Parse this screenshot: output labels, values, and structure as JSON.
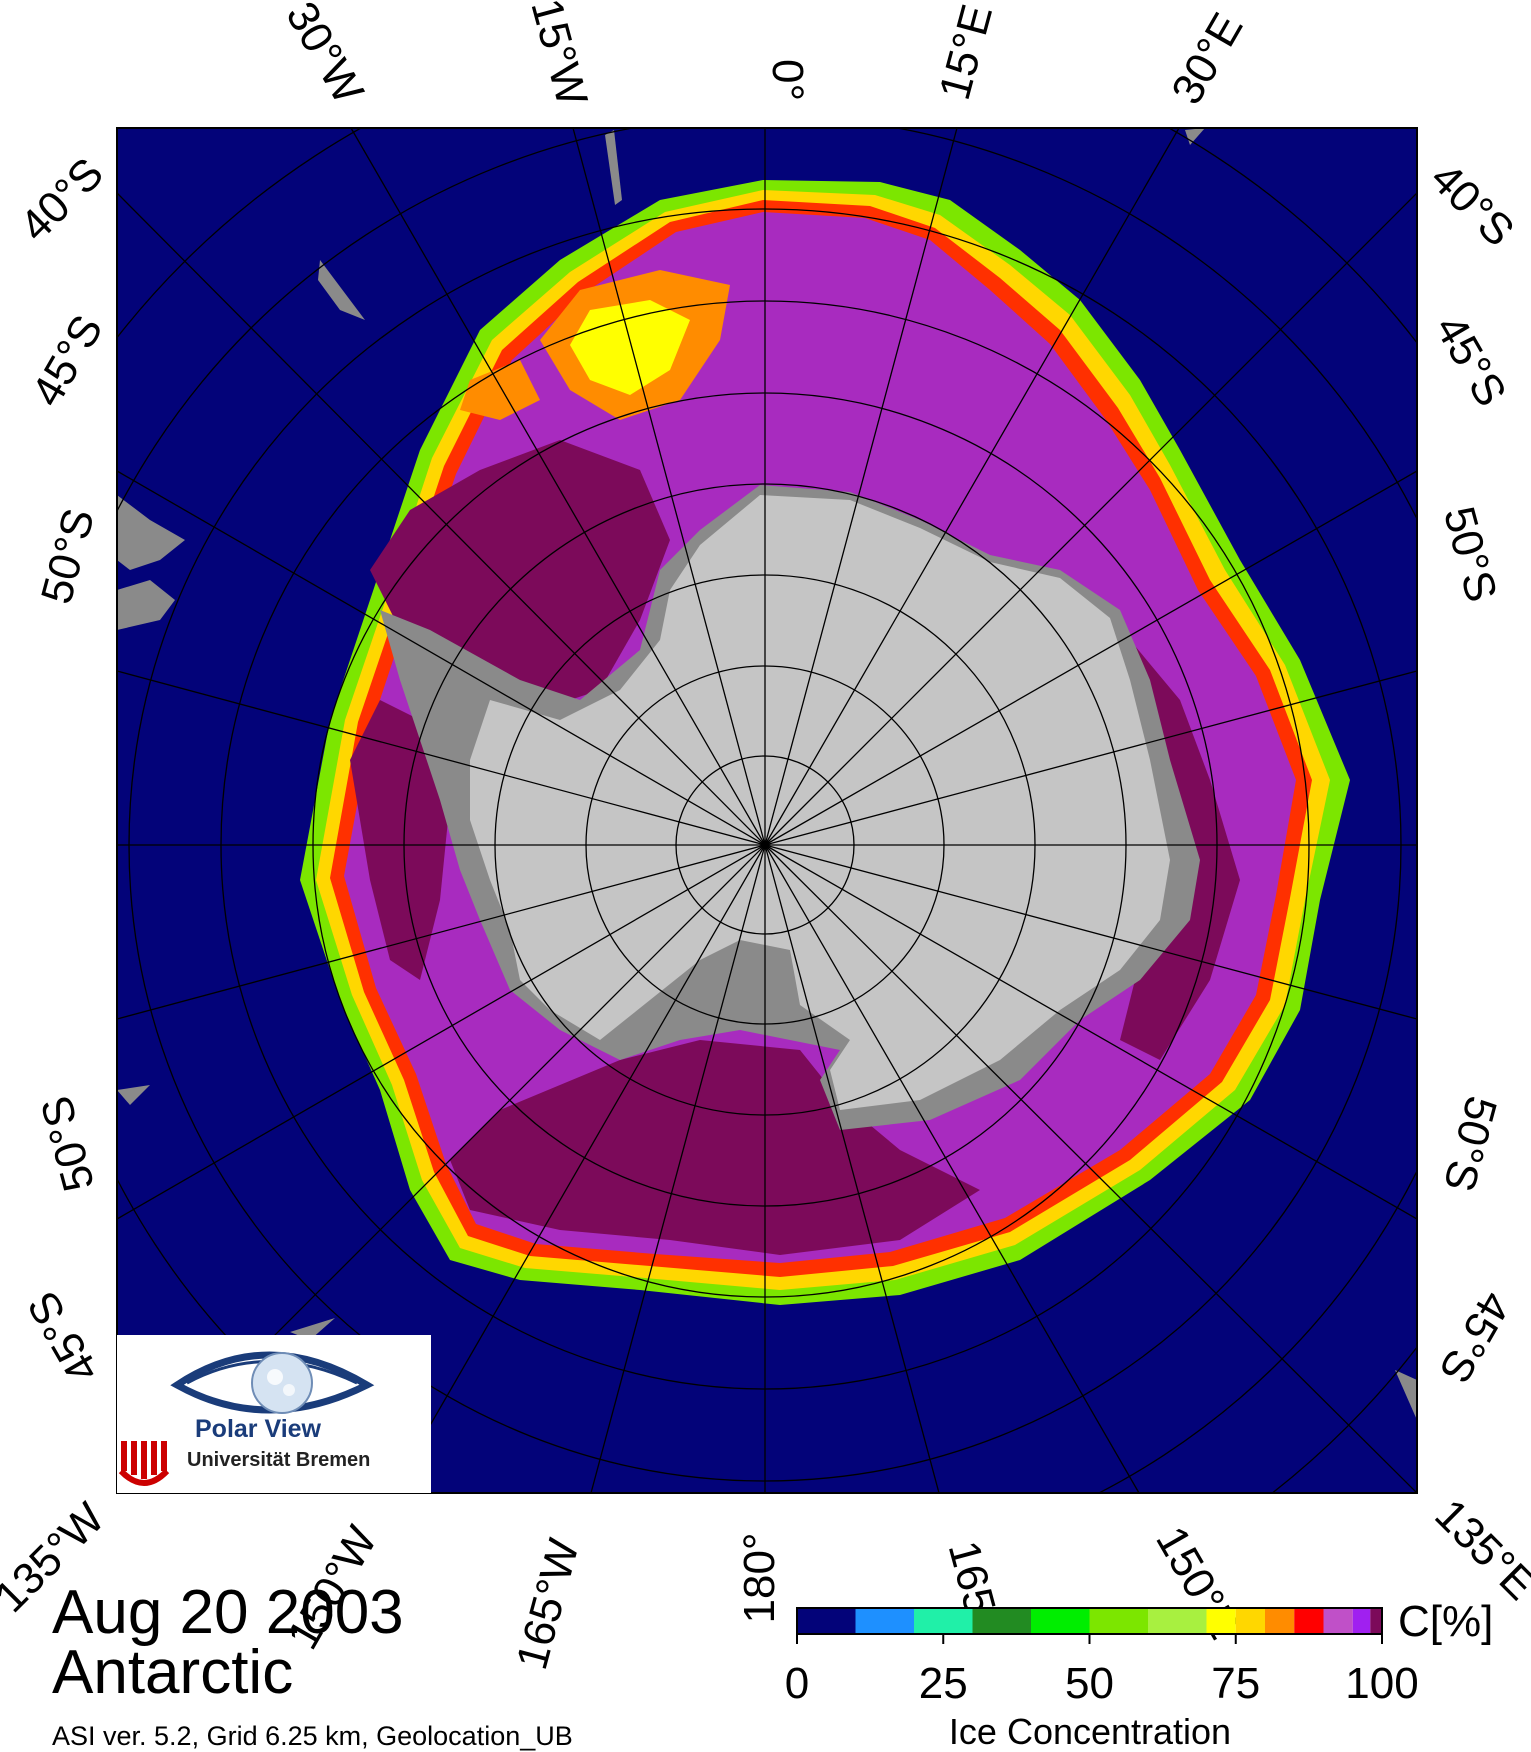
{
  "header": {
    "date": "Aug 20 2003",
    "region": "Antarctic"
  },
  "footer": {
    "info": "ASI ver. 5.2,  Grid 6.25 km, Geolocation_UB"
  },
  "map": {
    "projection": "polar stereographic, south pole",
    "top_longitude_labels": [
      "30°W",
      "15°W",
      "0°",
      "15°E",
      "30°E"
    ],
    "bottom_longitude_labels": [
      "135°W",
      "150°W",
      "165°W",
      "180°",
      "165°",
      "150°E",
      "135°E"
    ],
    "left_latitude_labels": [
      "40°S",
      "45°S",
      "50°S",
      "50°S",
      "45°S"
    ],
    "right_latitude_labels": [
      "40°S",
      "45°S",
      "50°S",
      "50°S",
      "45°S"
    ],
    "colors": {
      "ocean": "#030379",
      "land": "#8a8a8a",
      "ice_shelf": "#c5c5c5",
      "full_ice": "#7c0a5a",
      "ice_mid": "#a82bbf"
    }
  },
  "logo": {
    "name": "Polar View",
    "institution": "Universität Bremen"
  },
  "legend": {
    "unit": "C[%]",
    "title": "Ice Concentration",
    "ticks": [
      "0",
      "25",
      "50",
      "75",
      "100"
    ],
    "tick_values": [
      0,
      25,
      50,
      75,
      100
    ],
    "bins": [
      {
        "from": 0,
        "to": 10,
        "color": "#030379"
      },
      {
        "from": 10,
        "to": 20,
        "color": "#1e90ff"
      },
      {
        "from": 20,
        "to": 30,
        "color": "#20f0a8"
      },
      {
        "from": 30,
        "to": 40,
        "color": "#228b22"
      },
      {
        "from": 40,
        "to": 50,
        "color": "#00ee00"
      },
      {
        "from": 50,
        "to": 60,
        "color": "#7ce600"
      },
      {
        "from": 60,
        "to": 70,
        "color": "#a8f040"
      },
      {
        "from": 70,
        "to": 75,
        "color": "#ffff00"
      },
      {
        "from": 75,
        "to": 80,
        "color": "#ffd700"
      },
      {
        "from": 80,
        "to": 85,
        "color": "#ff8c00"
      },
      {
        "from": 85,
        "to": 90,
        "color": "#ff0000"
      },
      {
        "from": 90,
        "to": 95,
        "color": "#c050c8"
      },
      {
        "from": 95,
        "to": 98,
        "color": "#a020f0"
      },
      {
        "from": 98,
        "to": 100,
        "color": "#7c0a5a"
      }
    ]
  }
}
